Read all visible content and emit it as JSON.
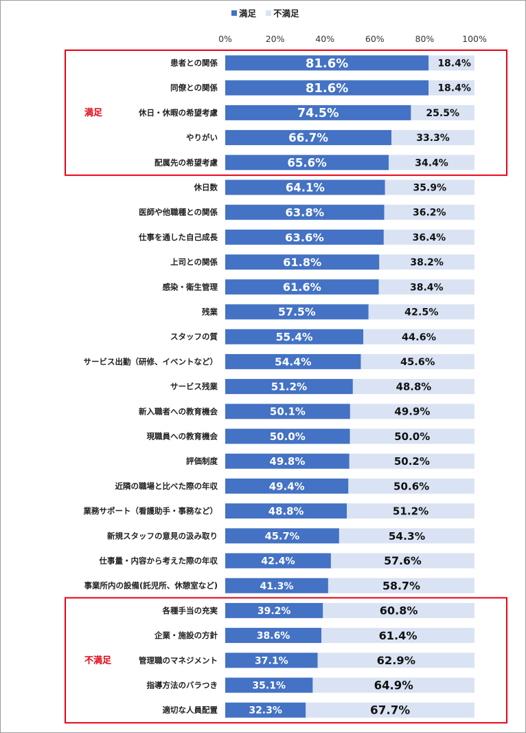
{
  "chart_data": {
    "type": "bar",
    "orientation": "horizontal",
    "stacked": true,
    "legend_position": "top",
    "x_axis": {
      "ticks": [
        "0%",
        "20%",
        "40%",
        "60%",
        "80%",
        "100%"
      ],
      "range": [
        0,
        100
      ],
      "position": "top"
    },
    "series": [
      {
        "name": "満足",
        "color": "#4472c4",
        "values": [
          81.6,
          81.6,
          74.5,
          66.7,
          65.6,
          64.1,
          63.8,
          63.6,
          61.8,
          61.6,
          57.5,
          55.4,
          54.4,
          51.2,
          50.1,
          50.0,
          49.8,
          49.4,
          48.8,
          45.7,
          42.4,
          41.3,
          39.2,
          38.6,
          37.1,
          35.1,
          32.3
        ]
      },
      {
        "name": "不満足",
        "color": "#dae3f3",
        "values": [
          18.4,
          18.4,
          25.5,
          33.3,
          34.4,
          35.9,
          36.2,
          36.4,
          38.2,
          38.4,
          42.5,
          44.6,
          45.6,
          48.8,
          49.9,
          50.0,
          50.2,
          50.6,
          51.2,
          54.3,
          57.6,
          58.7,
          60.8,
          61.4,
          62.9,
          64.9,
          67.7
        ]
      }
    ],
    "categories": [
      "患者との関係",
      "同僚との関係",
      "休日・休暇の希望考慮",
      "やりがい",
      "配属先の希望考慮",
      "休日数",
      "医師や他職種との関係",
      "仕事を通した自己成長",
      "上司との関係",
      "感染・衛生管理",
      "残業",
      "スタッフの質",
      "サービス出勤（研修、イベントなど）",
      "サービス残業",
      "新入職者への教育機会",
      "現職員への教育機会",
      "評価制度",
      "近隣の職場と比べた際の年収",
      "業務サポート（看護助手・事務など）",
      "新規スタッフの意見の汲み取り",
      "仕事量・内容から考えた際の年収",
      "事業所内の設備(託児所、休憩室など)",
      "各種手当の充実",
      "企業・施設の方針",
      "管理職のマネジメント",
      "指導方法のバラつき",
      "適切な人員配置"
    ],
    "labels_satisfied": [
      "81.6%",
      "81.6%",
      "74.5%",
      "66.7%",
      "65.6%",
      "64.1%",
      "63.8%",
      "63.6%",
      "61.8%",
      "61.6%",
      "57.5%",
      "55.4%",
      "54.4%",
      "51.2%",
      "50.1%",
      "50.0%",
      "49.8%",
      "49.4%",
      "48.8%",
      "45.7%",
      "42.4%",
      "41.3%",
      "39.2%",
      "38.6%",
      "37.1%",
      "35.1%",
      "32.3%"
    ],
    "labels_dissatisfied": [
      "18.4%",
      "18.4%",
      "25.5%",
      "33.3%",
      "34.4%",
      "35.9%",
      "36.2%",
      "36.4%",
      "38.2%",
      "38.4%",
      "42.5%",
      "44.6%",
      "45.6%",
      "48.8%",
      "49.9%",
      "50.0%",
      "50.2%",
      "50.6%",
      "51.2%",
      "54.3%",
      "57.6%",
      "58.7%",
      "60.8%",
      "61.4%",
      "62.9%",
      "64.9%",
      "67.7%"
    ],
    "highlight_groups": [
      {
        "label": "満足",
        "color": "#e60012",
        "rows": [
          0,
          4
        ]
      },
      {
        "label": "不満足",
        "color": "#e60012",
        "rows": [
          22,
          26
        ]
      }
    ]
  }
}
